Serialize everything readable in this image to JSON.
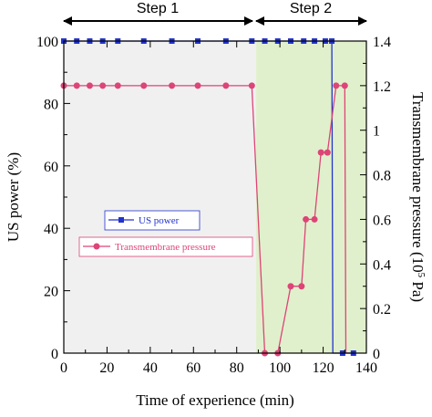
{
  "chart_data": {
    "type": "line",
    "xlabel": "Time of experience (min)",
    "ylabel_left": "US power (%)",
    "ylabel_right_prefix": "Transmembrane pressure (10",
    "ylabel_right_exp": "5",
    "ylabel_right_suffix": " Pa)",
    "xlim": [
      0,
      140
    ],
    "ylim_left": [
      0,
      100
    ],
    "ylim_right": [
      0,
      1.4
    ],
    "x_ticks": [
      "0",
      "20",
      "40",
      "60",
      "80",
      "100",
      "120",
      "140"
    ],
    "y_left_ticks": [
      "0",
      "20",
      "40",
      "60",
      "80",
      "100"
    ],
    "y_right_ticks": [
      "0",
      "0.2",
      "0.4",
      "0.6",
      "0.8",
      "1",
      "1.2",
      "1.4"
    ],
    "regions": [
      {
        "label": "Step 1",
        "x_start": 0,
        "x_end": 89,
        "color": "#f0f0f0"
      },
      {
        "label": "Step 2",
        "x_start": 89,
        "x_end": 140,
        "color": "#e0f0cc"
      }
    ],
    "series": [
      {
        "name": "US power",
        "axis": "left",
        "color": "#2233cc",
        "marker": "square",
        "x": [
          0,
          6,
          12,
          18,
          25,
          37,
          50,
          62,
          75,
          87,
          93,
          99,
          105,
          111,
          116,
          121,
          124,
          124.5,
          129,
          134
        ],
        "y": [
          100,
          100,
          100,
          100,
          100,
          100,
          100,
          100,
          100,
          100,
          100,
          100,
          100,
          100,
          100,
          100,
          100,
          0,
          0,
          0
        ],
        "marker_mask": [
          1,
          1,
          1,
          1,
          1,
          1,
          1,
          1,
          1,
          1,
          1,
          1,
          1,
          1,
          1,
          1,
          1,
          0,
          1,
          1
        ]
      },
      {
        "name": "Transmembrane pressure",
        "axis": "right",
        "color": "#dd4477",
        "marker": "circle",
        "x": [
          0,
          6,
          12,
          18,
          25,
          37,
          50,
          62,
          75,
          87,
          93,
          99,
          105,
          110,
          112,
          116,
          119,
          122,
          126,
          130,
          130.5
        ],
        "y": [
          1.2,
          1.2,
          1.2,
          1.2,
          1.2,
          1.2,
          1.2,
          1.2,
          1.2,
          1.2,
          0,
          0,
          0.3,
          0.3,
          0.6,
          0.6,
          0.9,
          0.9,
          1.2,
          1.2,
          0
        ],
        "marker_mask": [
          1,
          1,
          1,
          1,
          1,
          1,
          1,
          1,
          1,
          1,
          1,
          1,
          1,
          1,
          1,
          1,
          1,
          1,
          1,
          1,
          0
        ]
      }
    ]
  }
}
